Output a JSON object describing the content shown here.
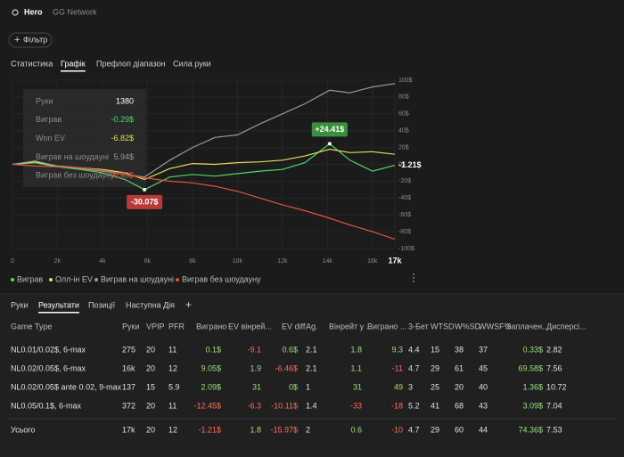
{
  "header": {
    "name": "Hero",
    "network": "GG Network"
  },
  "filter_button": "Фільтр",
  "tabs": [
    "Статистика",
    "Графік",
    "Префлоп діапазон",
    "Сила руки"
  ],
  "active_tab": 1,
  "chart_data": {
    "type": "line",
    "x": [
      0,
      1000,
      2000,
      3000,
      4000,
      5000,
      5870,
      7000,
      8000,
      9000,
      10000,
      11000,
      12000,
      13000,
      14100,
      15000,
      16000,
      17000
    ],
    "series": [
      {
        "name": "Виграв",
        "color": "#4cd964",
        "values": [
          0,
          2,
          -3,
          -6,
          -10,
          -18,
          -30.07,
          -15,
          -12,
          -14,
          -11,
          -8,
          -6,
          2,
          24.41,
          5,
          -8,
          -1.21
        ]
      },
      {
        "name": "Олл-ін EV",
        "color": "#e6dc5a",
        "values": [
          0,
          3,
          -2,
          -4,
          -6,
          -10,
          -18,
          -5,
          1,
          0,
          2,
          3,
          5,
          10,
          18,
          14,
          15,
          12
        ]
      },
      {
        "name": "Виграв на шоудауні",
        "color": "#9a9a9a",
        "values": [
          0,
          4,
          -2,
          -5,
          -8,
          -12,
          -15,
          5,
          20,
          32,
          35,
          48,
          60,
          72,
          88,
          85,
          92,
          96
        ]
      },
      {
        "name": "Виграв без шоудауну",
        "color": "#e0533f",
        "values": [
          0,
          -2,
          -3,
          -4,
          -7,
          -12,
          -16,
          -20,
          -22,
          -26,
          -32,
          -40,
          -48,
          -55,
          -64,
          -72,
          -80,
          -89
        ]
      }
    ],
    "xlim": [
      0,
      17000
    ],
    "xticks": [
      0,
      {
        "value": 2000,
        "label": "2k"
      },
      {
        "value": 4000,
        "label": "4k"
      },
      {
        "value": 6000,
        "label": "6k"
      },
      {
        "value": 8000,
        "label": "8k"
      },
      {
        "value": 10000,
        "label": "10k"
      },
      {
        "value": 12000,
        "label": "12k"
      },
      {
        "value": 14000,
        "label": "14k"
      },
      {
        "value": 16000,
        "label": "16k"
      },
      {
        "value": 17000,
        "label": "17k"
      }
    ],
    "ylim": [
      -100,
      100
    ],
    "yticks": [
      {
        "value": 100,
        "label": "100$"
      },
      {
        "value": 80,
        "label": "80$"
      },
      {
        "value": 60,
        "label": "60$"
      },
      {
        "value": 40,
        "label": "40$"
      },
      {
        "value": 20,
        "label": "20$"
      },
      {
        "value": 0,
        "label": "0$"
      },
      {
        "value": -20,
        "label": "-20$"
      },
      {
        "value": -40,
        "label": "-40$"
      },
      {
        "value": -60,
        "label": "-60$"
      },
      {
        "value": -80,
        "label": "-80$"
      },
      {
        "value": -100,
        "label": "-100$"
      }
    ],
    "grid": true,
    "annotations": [
      {
        "x": 14100,
        "value": 24.41,
        "label": "+24.41$",
        "position": "above",
        "color": "#3a8f3e"
      },
      {
        "x": 5870,
        "value": -30.07,
        "label": "-30.07$",
        "position": "below",
        "color": "#b83a3a"
      },
      {
        "x": 17000,
        "value": -1.21,
        "label": "-1.21$",
        "position": "right",
        "color": "#ffffff"
      }
    ]
  },
  "tooltip": [
    {
      "label": "Руки",
      "value": "1380"
    },
    {
      "label": "Виграв",
      "value": "-0.29$"
    },
    {
      "label": "Won EV",
      "value": "-6.82$"
    },
    {
      "label": "Виграв на шоудауні",
      "value": "5.94$"
    },
    {
      "label": "Виграв без шоудауну",
      "value": "-6.43$"
    }
  ],
  "bottom_tabs": [
    "Руки",
    "Результати",
    "Позиції",
    "Наступна Дія",
    "+"
  ],
  "active_bottom_tab": 1,
  "table": {
    "columns": [
      "Game Type",
      "Руки",
      "VPIP",
      "PFR",
      "Виграно",
      "EV вінрей...",
      "EV diff.",
      "Ag.",
      "Вінрейт у ...",
      "Виграно ...",
      "3-Бет",
      "WTSD",
      "W%SD",
      "WWSF%",
      "Заплачен...",
      "Дисперсі..."
    ],
    "rows": [
      [
        "NL0.01/0.02$, 6-max",
        "275",
        "20",
        "11",
        "0.1$",
        "-9.1",
        "0.6$",
        "2.1",
        "1.8",
        "9.3",
        "4.4",
        "15",
        "38",
        "37",
        "0.33$",
        "2.82"
      ],
      [
        "NL0.02/0.05$, 6-max",
        "16k",
        "20",
        "12",
        "9.05$",
        "1.9",
        "-6.46$",
        "2.1",
        "1.1",
        "-11",
        "4.7",
        "29",
        "61",
        "45",
        "69.58$",
        "7.56"
      ],
      [
        "NL0.02/0.05$ ante 0.02, 9-max",
        "137",
        "15",
        "5.9",
        "2.09$",
        "31",
        "0$",
        "1",
        "31",
        "49",
        "3",
        "25",
        "20",
        "40",
        "1.36$",
        "10.72"
      ],
      [
        "NL0.05/0.1$, 6-max",
        "372",
        "20",
        "11",
        "-12.45$",
        "-6.3",
        "-10.11$",
        "1.4",
        "-33",
        "-18",
        "5.2",
        "41",
        "68",
        "43",
        "3.09$",
        "7.04"
      ]
    ],
    "total": [
      "Усього",
      "17k",
      "20",
      "12",
      "-1.21$",
      "1.8",
      "-15.97$",
      "2",
      "0.6",
      "-10",
      "4.7",
      "29",
      "60",
      "44",
      "74.36$",
      "7.53"
    ]
  }
}
